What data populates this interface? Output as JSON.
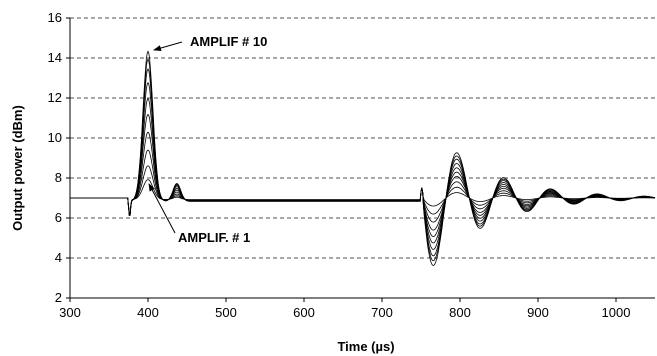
{
  "chart_data": {
    "type": "line",
    "title": "",
    "xlabel": "Time (µs)",
    "ylabel": "Output power (dBm)",
    "xlim": [
      300,
      1050
    ],
    "ylim": [
      2,
      16
    ],
    "xticks": [
      300,
      400,
      500,
      600,
      700,
      800,
      900,
      1000
    ],
    "yticks": [
      2,
      4,
      6,
      8,
      10,
      12,
      14,
      16
    ],
    "grid": "horizontal-dashed",
    "baseline_dbm": 7.0,
    "switch_on_us": 375,
    "switch_off_us": 750,
    "series": [
      {
        "peak_dbm": 8.0,
        "undershoot_dbm": 6.5,
        "steady_dbm": 6.92
      },
      {
        "peak_dbm": 8.7,
        "undershoot_dbm": 6.0,
        "steady_dbm": 6.91
      },
      {
        "peak_dbm": 9.5,
        "undershoot_dbm": 5.5,
        "steady_dbm": 6.9
      },
      {
        "peak_dbm": 10.4,
        "undershoot_dbm": 5.0,
        "steady_dbm": 6.89
      },
      {
        "peak_dbm": 11.3,
        "undershoot_dbm": 4.6,
        "steady_dbm": 6.88
      },
      {
        "peak_dbm": 12.1,
        "undershoot_dbm": 4.2,
        "steady_dbm": 6.87
      },
      {
        "peak_dbm": 12.9,
        "undershoot_dbm": 3.8,
        "steady_dbm": 6.86
      },
      {
        "peak_dbm": 13.6,
        "undershoot_dbm": 3.4,
        "steady_dbm": 6.85
      },
      {
        "peak_dbm": 14.1,
        "undershoot_dbm": 3.1,
        "steady_dbm": 6.84
      },
      {
        "peak_dbm": 14.5,
        "undershoot_dbm": 2.8,
        "steady_dbm": 6.83
      }
    ],
    "annotations": [
      {
        "text": "AMPLIF # 10",
        "points_to": {
          "x": 400,
          "y": 14.5
        }
      },
      {
        "text": "AMPLIF. # 1",
        "points_to": {
          "x": 400,
          "y": 8.0
        }
      }
    ]
  }
}
